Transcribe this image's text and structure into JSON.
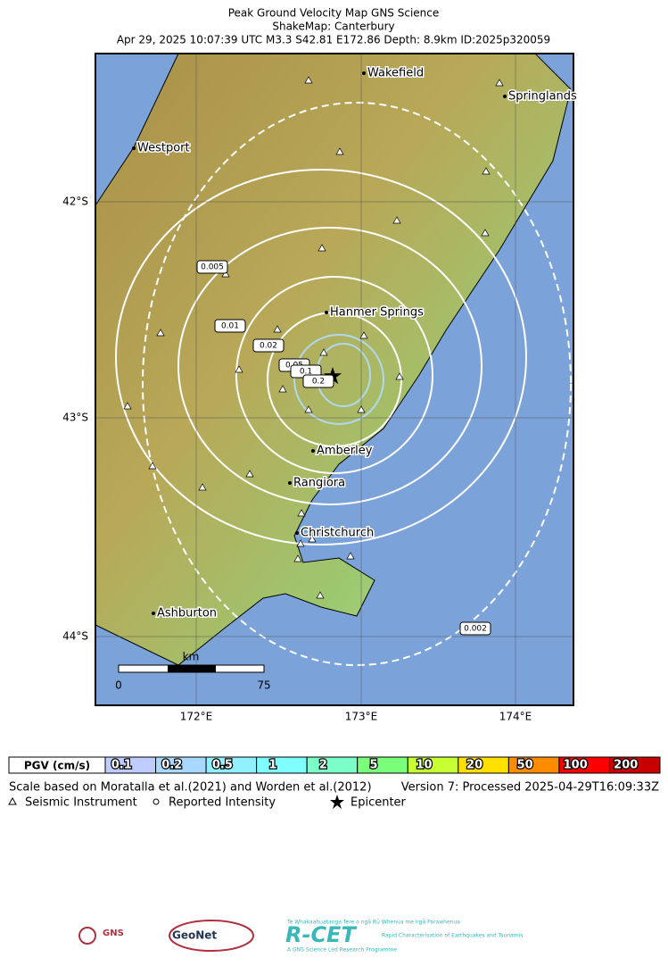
{
  "header": {
    "title": "Peak Ground Velocity Map GNS Science",
    "subtitle": "ShakeMap: Canterbury",
    "event": "Apr 29, 2025 10:07:39 UTC M3.3 S42.81 E172.86 Depth: 8.9km ID:2025p320059"
  },
  "map": {
    "cities": [
      "Wakefield",
      "Springlands",
      "Westport",
      "Hanmer Springs",
      "Amberley",
      "Rangiora",
      "Christchurch",
      "Ashburton"
    ],
    "contour_labels": [
      "0.005",
      "0.01",
      "0.02",
      "0.05",
      "0.1",
      "0.2",
      "0.002"
    ],
    "lat_labels": [
      "42°S",
      "43°S",
      "44°S"
    ],
    "lon_labels": [
      "172°E",
      "173°E",
      "174°E"
    ],
    "scale_bar": {
      "unit": "km",
      "start": "0",
      "end": "75"
    }
  },
  "colorbar": {
    "label": "PGV (cm/s)",
    "bins": [
      {
        "label": "0.1",
        "color": "#bfccff"
      },
      {
        "label": "0.2",
        "color": "#a8d8ff"
      },
      {
        "label": "0.5",
        "color": "#90f0ff"
      },
      {
        "label": "1",
        "color": "#80ffff"
      },
      {
        "label": "2",
        "color": "#7affc8"
      },
      {
        "label": "5",
        "color": "#7aff7a"
      },
      {
        "label": "10",
        "color": "#c8ff33"
      },
      {
        "label": "20",
        "color": "#ffe000"
      },
      {
        "label": "50",
        "color": "#ff8c00"
      },
      {
        "label": "100",
        "color": "#ff0000"
      },
      {
        "label": "200",
        "color": "#c80000"
      }
    ]
  },
  "footer": {
    "scale_note": "Scale based on Moratalla et al.(2021) and Worden et al.(2012)",
    "version": "Version 7: Processed 2025-04-29T16:09:33Z",
    "legend": [
      "Seismic Instrument",
      "Reported Intensity",
      "Epicenter"
    ]
  },
  "logos": {
    "gns": "GNS",
    "geonet": "GeoNet",
    "rcet": "R-CET",
    "rcet_tagline": "Rapid Characterisation of Earthquakes and Tsunamis",
    "rcet_maori": "Te Whakaahuatanga Tere o ngā Rū Whenua me ngā Parawhenua",
    "rcet_footer": "A GNS Science Led Research Programme"
  }
}
